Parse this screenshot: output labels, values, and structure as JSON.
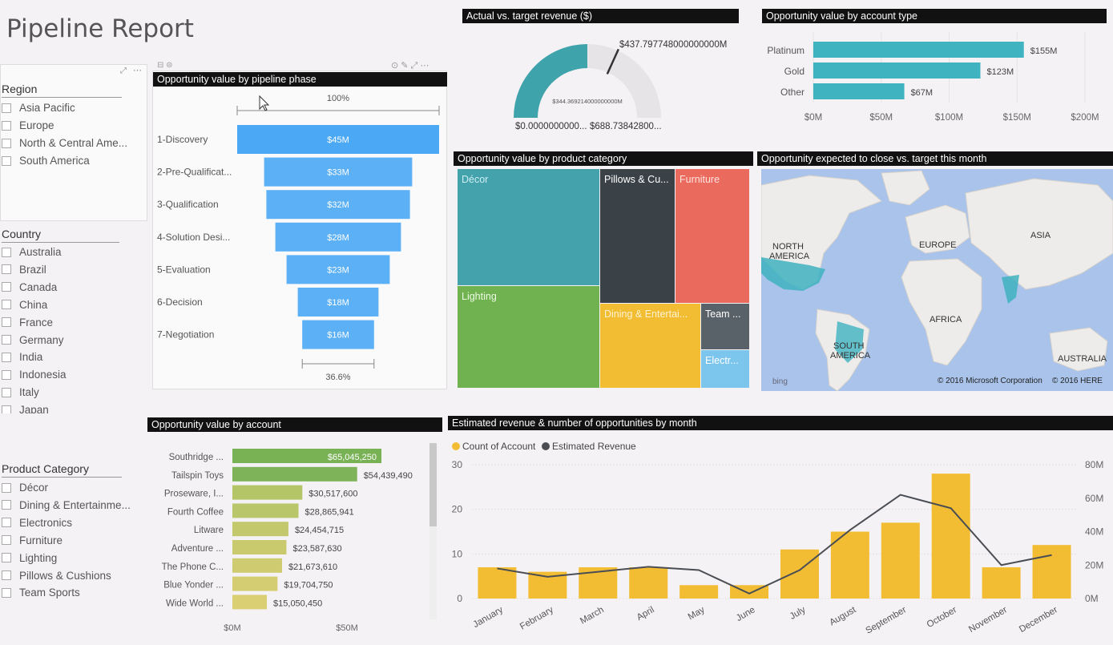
{
  "page_title": "Pipeline Report",
  "slicers": {
    "region": {
      "title": "Region",
      "items": [
        "Asia Pacific",
        "Europe",
        "North & Central Ame...",
        "South America"
      ]
    },
    "country": {
      "title": "Country",
      "items": [
        "Australia",
        "Brazil",
        "Canada",
        "China",
        "France",
        "Germany",
        "India",
        "Indonesia",
        "Italy",
        "Japan"
      ]
    },
    "product_category": {
      "title": "Product Category",
      "items": [
        "Décor",
        "Dining & Entertainme...",
        "Electronics",
        "Furniture",
        "Lighting",
        "Pillows & Cushions",
        "Team Sports"
      ]
    }
  },
  "funnel": {
    "header": "Opportunity value by pipeline phase",
    "top_pct": "100%",
    "bottom_pct": "36.6%",
    "color": "#4aa8f5",
    "stages": [
      "1-Discovery",
      "2-Pre-Qualificat...",
      "3-Qualification",
      "4-Solution Desi...",
      "5-Evaluation",
      "6-Decision",
      "7-Negotiation"
    ],
    "values": [
      45,
      33,
      32,
      28,
      23,
      18,
      16
    ],
    "labels": [
      "$45M",
      "$33M",
      "$32M",
      "$28M",
      "$23M",
      "$18M",
      "$16M"
    ]
  },
  "gauge": {
    "header": "Actual vs. target  revenue ($)",
    "value": 344.369214,
    "target": 437.797748,
    "min": 0,
    "max": 688.738428,
    "value_label": "$344.369214000000000M",
    "target_label": "$437.797748000000000M",
    "min_label": "$0.0000000000...",
    "max_label": "$688.73842800...",
    "fill_color": "#3fa3ac"
  },
  "account_type": {
    "header": "Opportunity value by account type",
    "categories": [
      "Platinum",
      "Gold",
      "Other"
    ],
    "values": [
      155,
      123,
      67
    ],
    "labels": [
      "$155M",
      "$123M",
      "$67M"
    ],
    "ticks": [
      "$0M",
      "$50M",
      "$100M",
      "$150M",
      "$200M"
    ],
    "xlim": [
      0,
      200
    ],
    "color": "#3fb3bf"
  },
  "treemap": {
    "header": "Opportunity value by product category",
    "cells": [
      {
        "label": "Décor",
        "color": "#44a2ad",
        "text": "#cfeff3"
      },
      {
        "label": "Pillows & Cu...",
        "color": "#3a4248",
        "text": "#ffffff"
      },
      {
        "label": "Furniture",
        "color": "#ea6a5d",
        "text": "#ffe3df"
      },
      {
        "label": "Lighting",
        "color": "#6fb24f",
        "text": "#eefae6"
      },
      {
        "label": "Dining & Entertai...",
        "color": "#f2bd33",
        "text": "#fff3cf"
      },
      {
        "label": "Team ...",
        "color": "#5a6269",
        "text": "#ffffff"
      },
      {
        "label": "Electr...",
        "color": "#7cc6ee",
        "text": "#ffffff"
      }
    ]
  },
  "map": {
    "header": "Opportunity expected to close vs. target this month",
    "labels": [
      "NORTH AMERICA",
      "EUROPE",
      "ASIA",
      "AFRICA",
      "SOUTH AMERICA",
      "AUSTRALIA"
    ],
    "copyright1": "© 2016 Microsoft Corporation",
    "copyright2": "© 2016 HERE",
    "logo": "bing"
  },
  "by_account": {
    "header": "Opportunity value by account",
    "categories": [
      "Southridge ...",
      "Tailspin Toys",
      "Proseware, I...",
      "Fourth Coffee",
      "Litware",
      "Adventure ...",
      "The Phone C...",
      "Blue Yonder ...",
      "Wide World ..."
    ],
    "values": [
      65045250,
      54439490,
      30517600,
      28865941,
      24454715,
      23587630,
      21673610,
      19704750,
      15050450
    ],
    "labels": [
      "$65,045,250",
      "$54,439,490",
      "$30,517,600",
      "$28,865,941",
      "$24,454,715",
      "$23,587,630",
      "$21,673,610",
      "$19,704,750",
      "$15,050,450"
    ],
    "colors": [
      "#79b255",
      "#7eb35a",
      "#b4c568",
      "#bac66a",
      "#c3c86c",
      "#c9ca6e",
      "#cfcb70",
      "#d5cd72",
      "#dbcf74"
    ],
    "ticks": [
      "$0M",
      "$50M"
    ],
    "xlim": [
      0,
      70000000
    ]
  },
  "chart_data": [
    {
      "type": "bar",
      "title": "Opportunity value by pipeline phase",
      "categories": [
        "1-Discovery",
        "2-Pre-Qualificat...",
        "3-Qualification",
        "4-Solution Desi...",
        "5-Evaluation",
        "6-Decision",
        "7-Negotiation"
      ],
      "values": [
        45,
        33,
        32,
        28,
        23,
        18,
        16
      ],
      "unit": "$M"
    },
    {
      "type": "bar",
      "title": "Opportunity value by account type",
      "categories": [
        "Platinum",
        "Gold",
        "Other"
      ],
      "values": [
        155,
        123,
        67
      ],
      "xlim": [
        0,
        200
      ]
    },
    {
      "type": "bar",
      "title": "Opportunity value by account",
      "categories": [
        "Southridge ...",
        "Tailspin Toys",
        "Proseware, I...",
        "Fourth Coffee",
        "Litware",
        "Adventure ...",
        "The Phone C...",
        "Blue Yonder ...",
        "Wide World ..."
      ],
      "values": [
        65045250,
        54439490,
        30517600,
        28865941,
        24454715,
        23587630,
        21673610,
        19704750,
        15050450
      ]
    },
    {
      "type": "bar",
      "title": "Estimated revenue & number of opportunities by month",
      "categories": [
        "January",
        "February",
        "March",
        "April",
        "May",
        "June",
        "July",
        "August",
        "September",
        "October",
        "November",
        "December"
      ],
      "series": [
        {
          "name": "Count of Account",
          "type": "bar",
          "axis": "left",
          "color": "#f2bd33",
          "values": [
            7,
            6,
            7,
            7,
            3,
            3,
            11,
            15,
            17,
            28,
            7,
            12
          ]
        },
        {
          "name": "Estimated Revenue",
          "type": "line",
          "axis": "right",
          "color": "#4a4e54",
          "values": [
            18,
            13,
            16,
            19,
            17,
            3,
            17,
            41,
            62,
            54,
            20,
            26
          ]
        }
      ],
      "ylim_left": [
        0,
        30
      ],
      "ylim_right": [
        0,
        80
      ],
      "left_ticks": [
        "0",
        "10",
        "20",
        "30"
      ],
      "right_ticks": [
        "0M",
        "20M",
        "40M",
        "60M",
        "80M"
      ],
      "legend": "top-left"
    }
  ],
  "combo_header": "Estimated revenue & number of opportunities by month"
}
